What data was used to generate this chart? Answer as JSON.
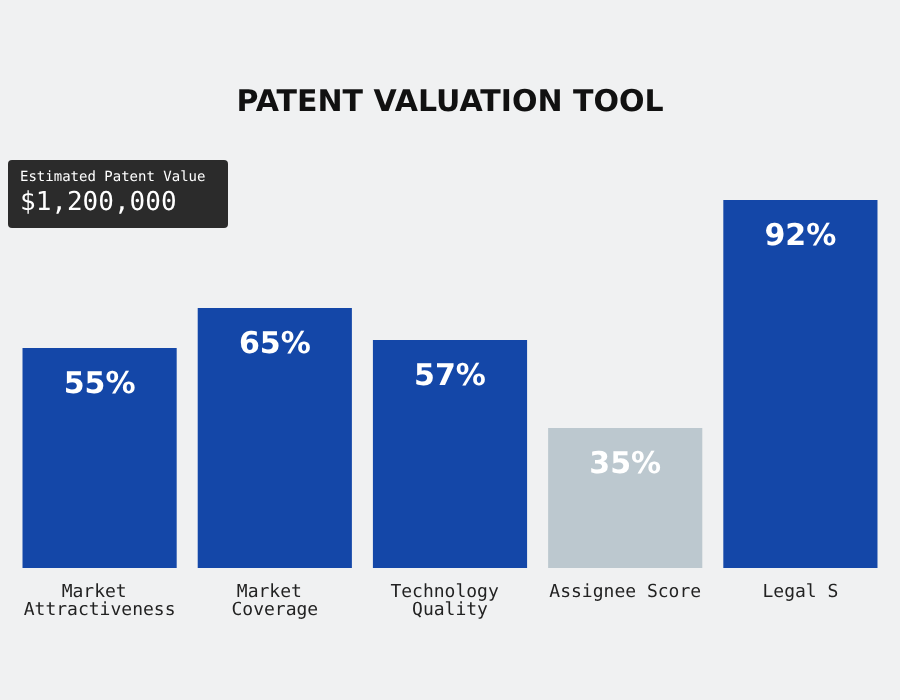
{
  "chart_data": {
    "type": "bar",
    "title": "PATENT VALUATION TOOL",
    "categories": [
      "Market Attractiveness",
      "Market Coverage",
      "Technology Quality",
      "Assignee Score",
      "Legal S"
    ],
    "values": [
      55,
      65,
      57,
      35,
      92
    ],
    "colors": [
      "#1447a8",
      "#1447a8",
      "#1447a8",
      "#bcc8cf",
      "#1447a8"
    ],
    "value_labels": [
      "55%",
      "65%",
      "57%",
      "35%",
      "92%"
    ],
    "annotations": [
      "Estimated Patent Value",
      "$1,200,000"
    ]
  }
}
